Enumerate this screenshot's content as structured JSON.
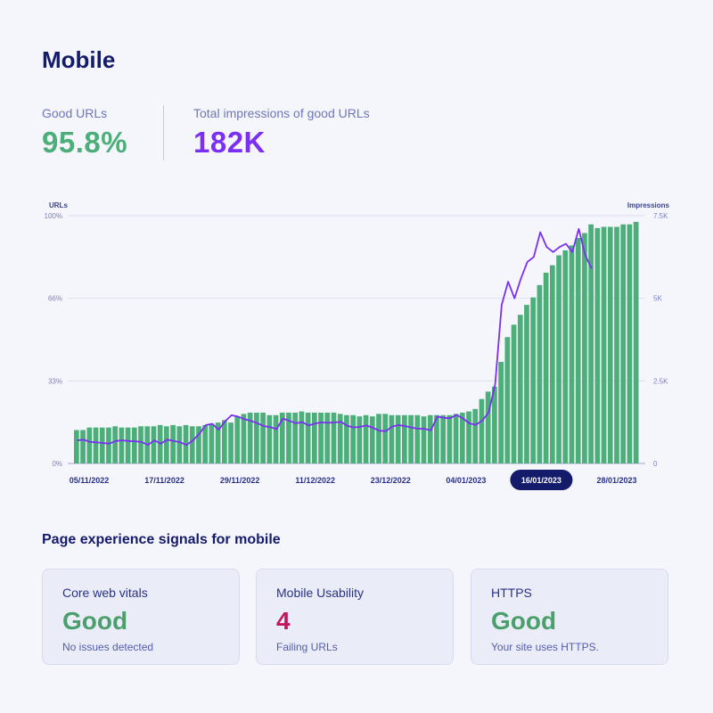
{
  "page": {
    "title": "Mobile"
  },
  "metrics": {
    "good_urls": {
      "label": "Good URLs",
      "value": "95.8%"
    },
    "impressions": {
      "label": "Total impressions of good URLs",
      "value": "182K"
    }
  },
  "colors": {
    "bars": "#4caf7a",
    "line": "#7b2ff2",
    "selected_date_bg": "#141b6b"
  },
  "chart_data": {
    "type": "bar",
    "left_axis": {
      "title": "URLs",
      "ticks": [
        "0%",
        "33%",
        "66%",
        "100%"
      ],
      "range": [
        0,
        100
      ],
      "unit": "%"
    },
    "right_axis": {
      "title": "Impressions",
      "ticks": [
        "0",
        "2.5K",
        "5K",
        "7.5K"
      ],
      "range": [
        0,
        7500
      ]
    },
    "x_tick_labels": [
      "05/11/2022",
      "17/11/2022",
      "29/11/2022",
      "11/12/2022",
      "23/12/2022",
      "04/01/2023",
      "16/01/2023",
      "28/01/2023"
    ],
    "selected_x_label": "16/01/2023",
    "grid": true,
    "series": [
      {
        "type": "bar",
        "axis": "left",
        "values": [
          13.5,
          13.5,
          14.5,
          14.5,
          14.5,
          14.5,
          15,
          14.5,
          14.5,
          14.5,
          15,
          15,
          15,
          15.5,
          15,
          15.5,
          15,
          15.5,
          15,
          15,
          15.5,
          16,
          16.5,
          17.5,
          16.5,
          19,
          20,
          20.5,
          20.5,
          20.5,
          19.5,
          19.5,
          20.5,
          20.5,
          20.5,
          21,
          20.5,
          20.5,
          20.5,
          20.5,
          20.5,
          20,
          19.5,
          19.5,
          19,
          19.5,
          19,
          20,
          20,
          19.5,
          19.5,
          19.5,
          19.5,
          19.5,
          19,
          19.5,
          19.5,
          19.5,
          19.5,
          20,
          20.5,
          21,
          22,
          26,
          29,
          31,
          41,
          51,
          56,
          60,
          64,
          67,
          72,
          77,
          80,
          84,
          86,
          88,
          91,
          93,
          96.5,
          95,
          95.5,
          95.5,
          95.5,
          96.5,
          96.5,
          97.5
        ]
      },
      {
        "type": "line",
        "axis": "right",
        "values": [
          700,
          720,
          650,
          640,
          620,
          600,
          680,
          700,
          680,
          670,
          650,
          560,
          700,
          600,
          720,
          680,
          640,
          560,
          700,
          900,
          1160,
          1200,
          1020,
          1280,
          1460,
          1420,
          1340,
          1290,
          1220,
          1130,
          1100,
          1040,
          1360,
          1290,
          1220,
          1250,
          1150,
          1210,
          1240,
          1230,
          1240,
          1260,
          1140,
          1090,
          1110,
          1150,
          1080,
          990,
          980,
          1120,
          1160,
          1130,
          1090,
          1050,
          1050,
          1000,
          1420,
          1380,
          1370,
          1470,
          1360,
          1210,
          1170,
          1300,
          1550,
          2400,
          4800,
          5500,
          5000,
          5600,
          6100,
          6250,
          7000,
          6550,
          6400,
          6550,
          6650,
          6400,
          7100,
          6300,
          5900
        ]
      }
    ]
  },
  "signals": {
    "title": "Page experience signals for mobile",
    "cards": [
      {
        "title": "Core web vitals",
        "value": "Good",
        "sub": "No issues detected",
        "status": "good"
      },
      {
        "title": "Mobile Usability",
        "value": "4",
        "sub": "Failing URLs",
        "status": "bad"
      },
      {
        "title": "HTTPS",
        "value": "Good",
        "sub": "Your site uses HTTPS.",
        "status": "good"
      }
    ]
  }
}
